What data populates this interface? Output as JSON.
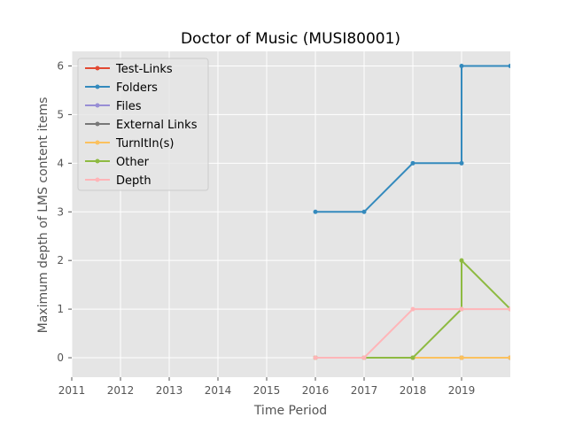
{
  "chart_data": {
    "type": "line",
    "title": "Doctor of Music (MUSI80001)",
    "xlabel": "Time Period",
    "ylabel": "Maximum depth of LMS content items",
    "xlim": [
      2011,
      2020
    ],
    "ylim": [
      -0.4,
      6.3
    ],
    "xticks": [
      2011,
      2012,
      2013,
      2014,
      2015,
      2016,
      2017,
      2018,
      2019
    ],
    "yticks": [
      0,
      1,
      2,
      3,
      4,
      5,
      6
    ],
    "grid": true,
    "legend_position": "upper-left",
    "background": "#e5e5e5",
    "series": [
      {
        "name": "Test-Links",
        "color": "#E24A33",
        "x": [
          2016,
          2017,
          2018,
          2019,
          2019,
          2020
        ],
        "y": [
          0,
          0,
          0,
          0,
          0,
          0
        ]
      },
      {
        "name": "Folders",
        "color": "#348ABD",
        "x": [
          2016,
          2017,
          2018,
          2019,
          2019,
          2020
        ],
        "y": [
          3,
          3,
          4,
          4,
          6,
          6
        ]
      },
      {
        "name": "Files",
        "color": "#988ED5",
        "x": [
          2016,
          2017,
          2018,
          2019,
          2019,
          2020
        ],
        "y": [
          0,
          0,
          0,
          0,
          0,
          0
        ]
      },
      {
        "name": "External Links",
        "color": "#777777",
        "x": [
          2016,
          2017,
          2018,
          2019,
          2019,
          2020
        ],
        "y": [
          0,
          0,
          0,
          0,
          0,
          0
        ]
      },
      {
        "name": "TurnItIn(s)",
        "color": "#FBC15E",
        "x": [
          2016,
          2017,
          2018,
          2019,
          2019,
          2020
        ],
        "y": [
          0,
          0,
          0,
          0,
          0,
          0
        ]
      },
      {
        "name": "Other",
        "color": "#8EBA42",
        "x": [
          2016,
          2017,
          2018,
          2019,
          2019,
          2020
        ],
        "y": [
          0,
          0,
          0,
          1,
          2,
          1
        ]
      },
      {
        "name": "Depth",
        "color": "#FFB5B8",
        "x": [
          2016,
          2017,
          2018,
          2019,
          2019,
          2020
        ],
        "y": [
          0,
          0,
          1,
          1,
          1,
          1
        ]
      }
    ]
  }
}
